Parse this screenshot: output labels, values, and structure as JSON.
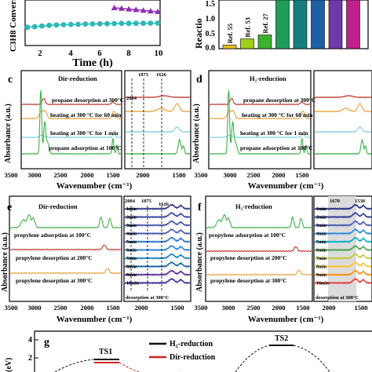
{
  "chart_data": [
    {
      "panel": "b",
      "type": "scatter",
      "xlabel": "Time (h)",
      "ylabel_fragment": "C3H8 Conversi",
      "xticks": [
        "2",
        "4",
        "6",
        "8",
        "10"
      ],
      "xlim": [
        1,
        10
      ],
      "series": [
        {
          "color": "#2bb8b8",
          "x": [
            1,
            1.5,
            2,
            2.5,
            3,
            3.5,
            4,
            4.5,
            5,
            5.5,
            6,
            6.5,
            7,
            7.5,
            8,
            8.5,
            9,
            9.5,
            10
          ],
          "y": [
            14,
            14.5,
            15,
            15.5,
            15.8,
            16,
            16.2,
            16.3,
            16.5,
            16.6,
            16.7,
            16.8,
            16.9,
            17,
            17,
            17.1,
            17.1,
            17.2,
            17.2
          ]
        },
        {
          "color": "#8e2fb5",
          "x": [
            7,
            7.5,
            8,
            8.5,
            9,
            9.5,
            10
          ],
          "y": [
            29,
            28.5,
            28,
            27.5,
            27,
            26.5,
            26
          ]
        }
      ]
    },
    {
      "panel": "bar",
      "type": "bar",
      "ylabel_fragment": "Reactio",
      "yticks": [
        "0.0",
        "0.5",
        "1.0",
        "1.5"
      ],
      "ylim": [
        0,
        1.6
      ],
      "categories": [
        "Ref. 55",
        "Ref. 53",
        "Ref. 27",
        "",
        "",
        "",
        "",
        ""
      ],
      "values": [
        0.12,
        0.32,
        0.45,
        1.6,
        1.6,
        1.6,
        1.6,
        1.6
      ],
      "colors": [
        "#e8c01a",
        "#9fd01a",
        "#3db12f",
        "#1e9e58",
        "#167f7e",
        "#1c5fa6",
        "#6f3aa8",
        "#c0208c"
      ]
    },
    {
      "panel": "c",
      "type": "line",
      "label": "c",
      "title": "Dir-reduction",
      "ylabel": "Absorbance (a.u.)",
      "xlabel": "Wavenumber (cm⁻¹)",
      "xticks": [
        "3500",
        "3000",
        "2500",
        "2000",
        "1500"
      ],
      "inset_xticks": [
        "2000",
        "1500"
      ],
      "inset_marks": [
        "2004",
        "1875",
        "1626"
      ],
      "spectra": [
        {
          "label": "propane desorption at 300°C",
          "color": "#c4392f"
        },
        {
          "label": "heating at 300 °C for 60 min",
          "color": "#e8a23a"
        },
        {
          "label": "heating at 300 °C for 1 min",
          "color": "#7fd0e0"
        },
        {
          "label": "propane adsorption at 100°C",
          "color": "#3fb24a"
        }
      ]
    },
    {
      "panel": "d",
      "type": "line",
      "label": "d",
      "title": "H₂-reduction",
      "ylabel": "Absorbance (a.u.)",
      "xlabel": "Wavenumber (cm⁻¹)",
      "xticks": [
        "3500",
        "3000",
        "2500",
        "2000",
        "1500"
      ],
      "spectra": [
        {
          "label": "propane desorption at 300°C",
          "color": "#c4392f"
        },
        {
          "label": "heating at 300 °C for 60 min",
          "color": "#e8a23a"
        },
        {
          "label": "heating at 300 °C for 1 min",
          "color": "#7fd0e0"
        },
        {
          "label": "propane adsorption at 100°C",
          "color": "#3fb24a"
        }
      ]
    },
    {
      "panel": "e",
      "type": "line",
      "label": "e",
      "title": "Dir-reduction",
      "ylabel": "Absorbance (a.u.)",
      "xlabel": "Wavenumber (cm⁻¹)",
      "xticks": [
        "3500",
        "3000",
        "2500",
        "2000",
        "1500"
      ],
      "inset_xticks": [
        "2000",
        "1500"
      ],
      "inset_marks": [
        "2004",
        "1875",
        "1626"
      ],
      "inset_minutes": [
        "1min",
        "2min",
        "3min",
        "4min",
        "5min",
        "6min",
        "7min",
        "8min",
        "9min",
        "10min"
      ],
      "inset_note": "desorption at 300°C",
      "spectra": [
        {
          "label": "propylene adsorption at 100°C",
          "color": "#3fb24a"
        },
        {
          "label": "propylene desorption at 200°C",
          "color": "#c4392f"
        },
        {
          "label": "propylene desorption at 300°C",
          "color": "#e8a23a"
        }
      ]
    },
    {
      "panel": "f",
      "type": "line",
      "label": "f",
      "title": "H₂-reduction",
      "ylabel": "Absorbance (a.u.)",
      "xlabel": "Wavenumber (cm⁻¹)",
      "xticks": [
        "3500",
        "3000",
        "2500",
        "2000",
        "1500"
      ],
      "inset_xticks": [
        "2000",
        "1500"
      ],
      "inset_marks": [
        "1670",
        "1530"
      ],
      "inset_minutes": [
        "1min",
        "2min",
        "3min",
        "4min",
        "5min",
        "6min",
        "7min",
        "8min",
        "9min",
        "10min"
      ],
      "inset_note": "desorption at 300°C",
      "spectra": [
        {
          "label": "propylene adsorption at 100°C",
          "color": "#3fb24a"
        },
        {
          "label": "propylene desorption at 200°C",
          "color": "#c4392f"
        },
        {
          "label": "propylene desorption at 300°C",
          "color": "#e8a23a"
        }
      ]
    },
    {
      "panel": "g",
      "type": "line",
      "label": "g",
      "ylabel": "(eV)",
      "yticks": [
        "4",
        "2"
      ],
      "states": [
        "TS1",
        "TS2"
      ],
      "legend": [
        {
          "label": "H₂-reduction",
          "color": "#111111"
        },
        {
          "label": "Dir-reduction",
          "color": "#d42020"
        }
      ]
    }
  ]
}
